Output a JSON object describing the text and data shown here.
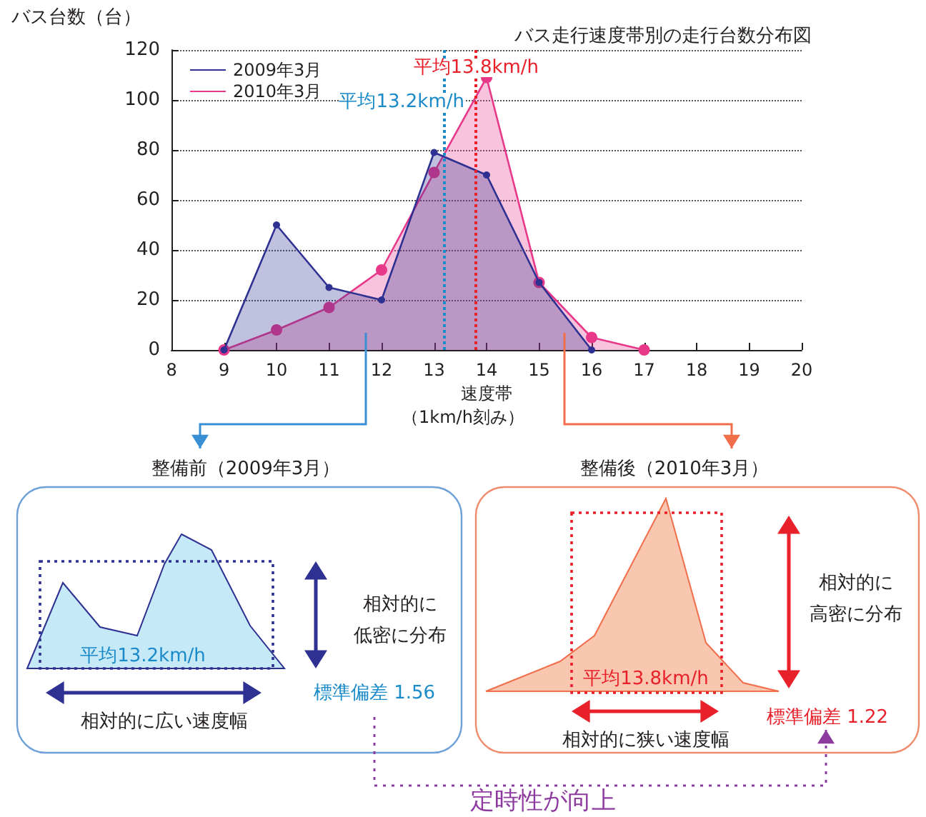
{
  "chart_data": {
    "type": "area",
    "title": "バス走行速度帯別の走行台数分布図",
    "ylabel": "バス台数（台）",
    "xlabel": "速度帯",
    "x": [
      9,
      10,
      11,
      12,
      13,
      14,
      15,
      16,
      17
    ],
    "series": [
      {
        "name": "2010年3月",
        "color": "#e8388a",
        "values": [
          0,
          8,
          17,
          32,
          71,
          109,
          27,
          5,
          0
        ]
      },
      {
        "name": "2009年3月",
        "color": "#2e3192",
        "values": [
          0,
          50,
          25,
          20,
          79,
          70,
          27,
          0,
          null
        ]
      }
    ],
    "xlim": [
      8,
      20
    ],
    "xticks": [
      8,
      9,
      10,
      11,
      12,
      13,
      14,
      15,
      16,
      17,
      18,
      19,
      20
    ],
    "ylim": [
      0,
      120
    ],
    "yticks": [
      0,
      20,
      40,
      60,
      80,
      100,
      120
    ],
    "grid": "y",
    "legend": "top left",
    "marker": "circle",
    "ref_lines": [
      {
        "axis": "x",
        "value": 13.2,
        "label": "平均13.2km/h",
        "color": "#1a8ac9",
        "line_style": "dotted"
      },
      {
        "axis": "x",
        "value": 13.8,
        "label": "平均13.8km/h",
        "color": "#e8202a",
        "line_style": "dotted"
      }
    ],
    "annotations": [
      "整備前（2009年3月）",
      "平均13.2km/h",
      "相対的に",
      "低密に分布",
      "標準偏差 1.56",
      "相対的に広い速度幅",
      "整備後（2010年3月）",
      "平均13.8km/h",
      "相対的に",
      "高密に分布",
      "標準偏差 1.22",
      "相対的に狭い速度幅",
      "定時性が向上",
      "（1km/h刻み）"
    ]
  }
}
